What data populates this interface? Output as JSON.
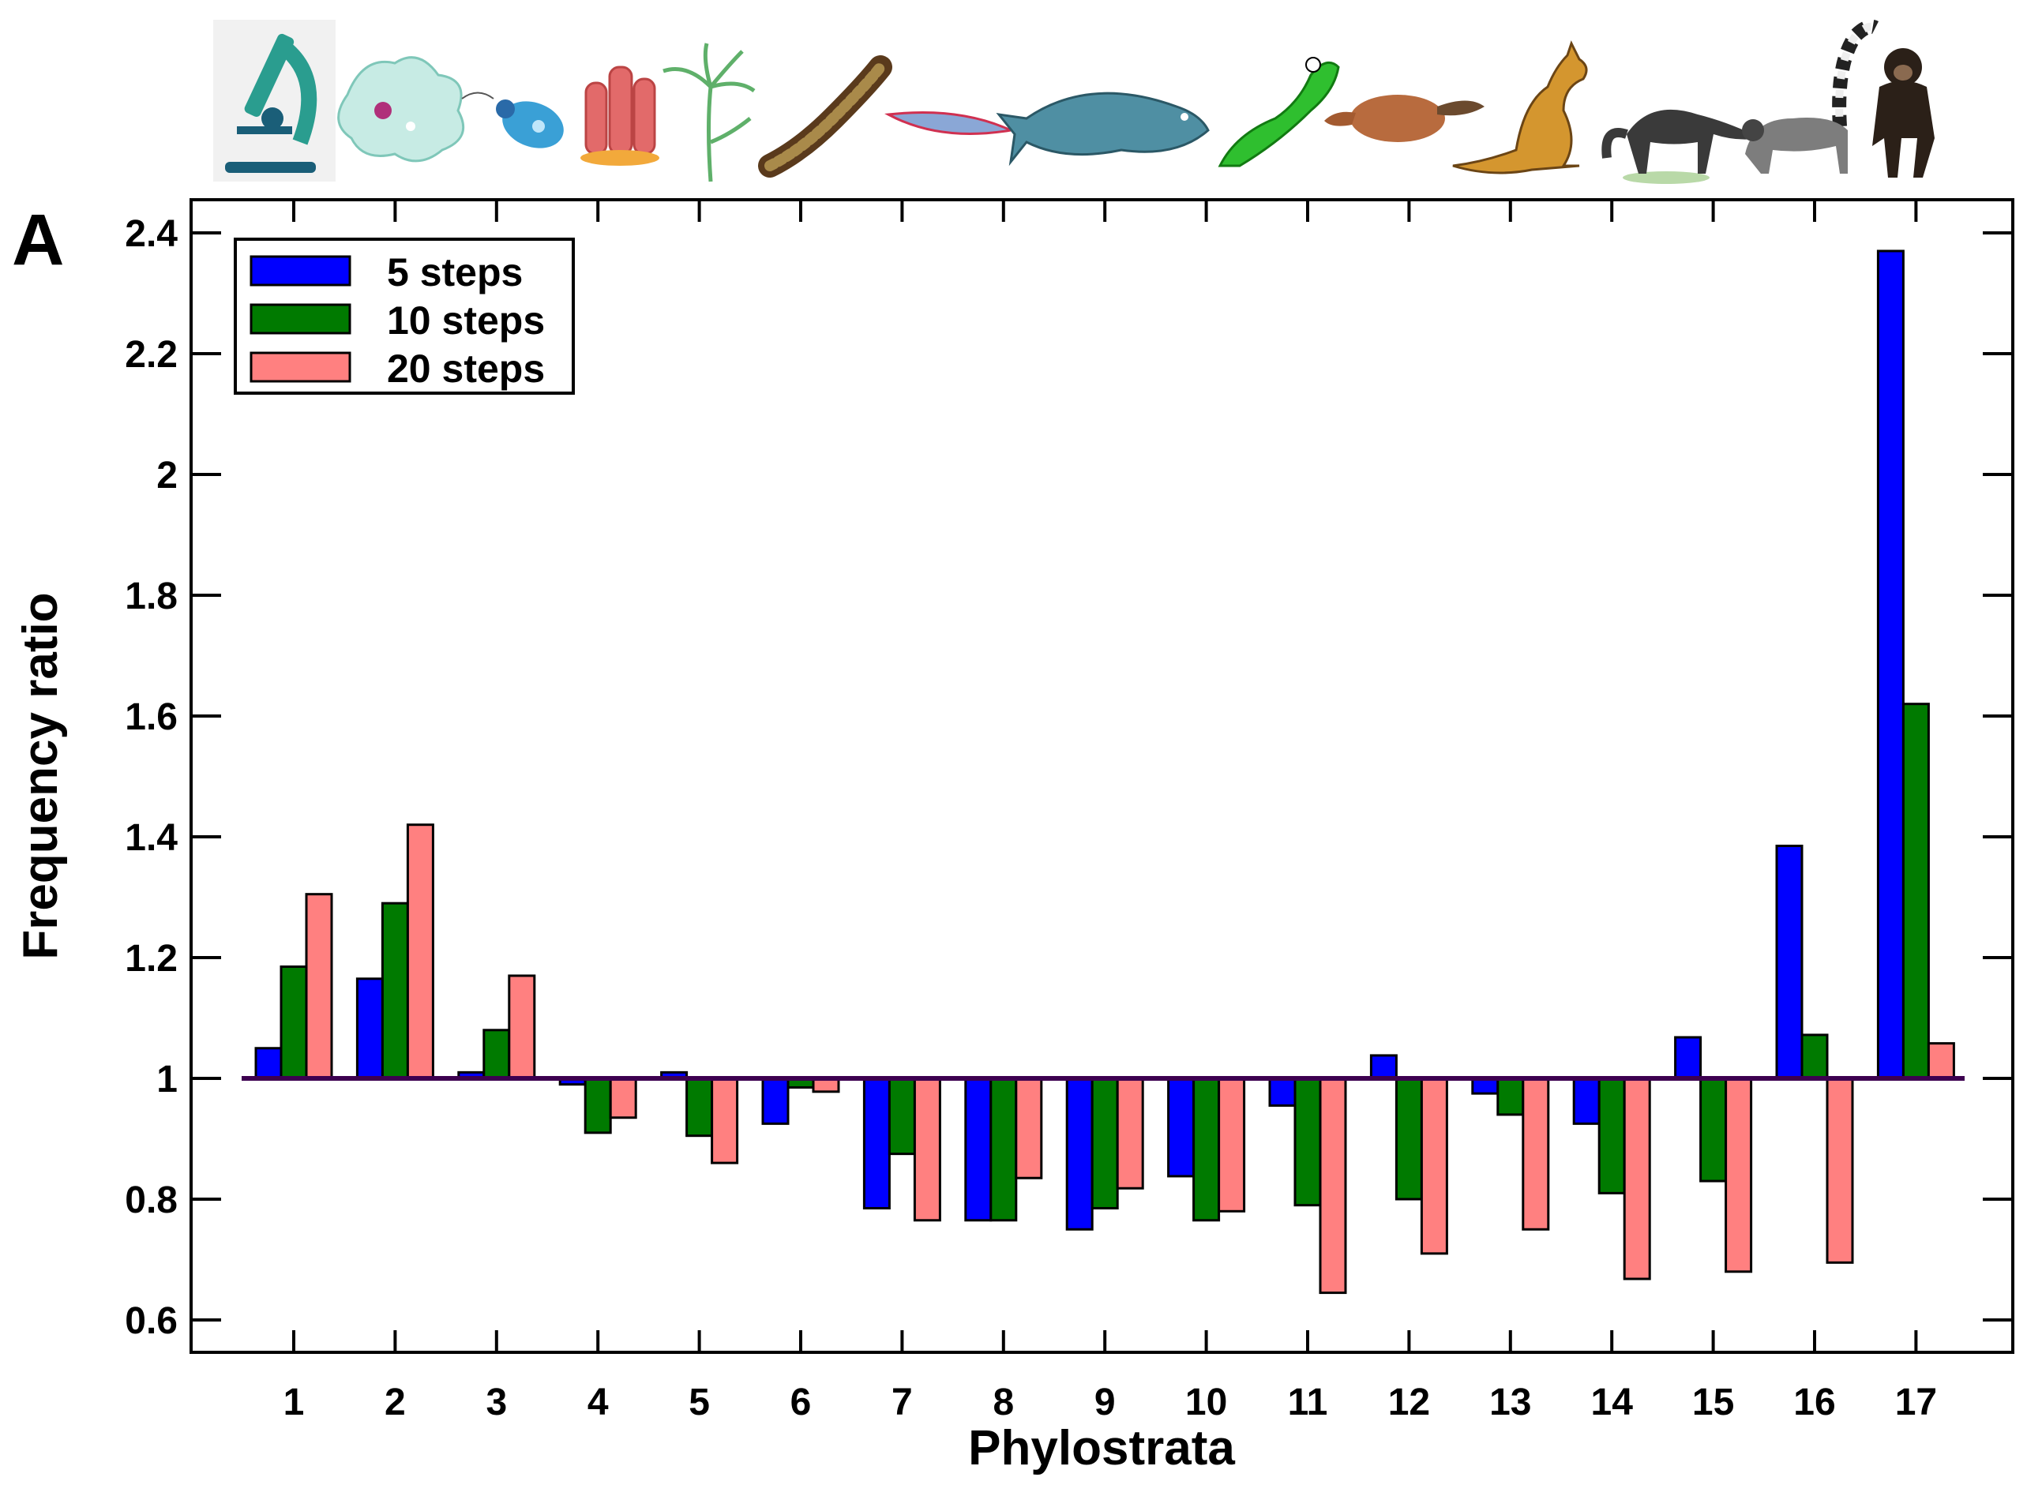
{
  "panel_label": "A",
  "organism_icons": [
    "microscope-icon",
    "amoeba-icon",
    "flagellate-icon",
    "sponge-icon",
    "hydra-icon",
    "worm-icon",
    "lancelet-icon",
    "coelacanth-icon",
    "lizard-icon",
    "platypus-icon",
    "kangaroo-icon",
    "anteater-icon",
    "lemur-icon",
    "chimpanzee-icon"
  ],
  "chart_data": {
    "type": "bar",
    "title": "",
    "xlabel": "Phylostrata",
    "ylabel": "Frequency ratio",
    "ylim": [
      0.55,
      2.45
    ],
    "yticks": [
      0.6,
      0.8,
      1,
      1.2,
      1.4,
      1.6,
      1.8,
      2,
      2.2,
      2.4
    ],
    "ytick_labels": [
      "0.6",
      "0.8",
      "1",
      "1.2",
      "1.4",
      "1.6",
      "1.8",
      "2",
      "2.2",
      "2.4"
    ],
    "baseline": 1,
    "categories": [
      "1",
      "2",
      "3",
      "4",
      "5",
      "6",
      "7",
      "8",
      "9",
      "10",
      "11",
      "12",
      "13",
      "14",
      "15",
      "16",
      "17"
    ],
    "series": [
      {
        "name": "5 steps",
        "color": "#0000FF",
        "values": [
          1.05,
          1.165,
          1.01,
          0.99,
          1.01,
          0.925,
          0.785,
          0.765,
          0.75,
          0.838,
          0.955,
          1.038,
          0.975,
          0.925,
          1.068,
          1.385,
          2.37
        ]
      },
      {
        "name": "10 steps",
        "color": "#007A00",
        "values": [
          1.185,
          1.29,
          1.08,
          0.91,
          0.905,
          0.985,
          0.875,
          0.765,
          0.785,
          0.765,
          0.79,
          0.8,
          0.94,
          0.81,
          0.83,
          1.072,
          1.62
        ]
      },
      {
        "name": "20 steps",
        "color": "#FF8080",
        "values": [
          1.305,
          1.42,
          1.17,
          0.935,
          0.86,
          0.978,
          0.765,
          0.835,
          0.818,
          0.78,
          0.645,
          0.71,
          0.75,
          0.668,
          0.68,
          0.695,
          1.058
        ]
      }
    ],
    "legend_position": "top-left",
    "baseline_color": "#3D0050"
  }
}
